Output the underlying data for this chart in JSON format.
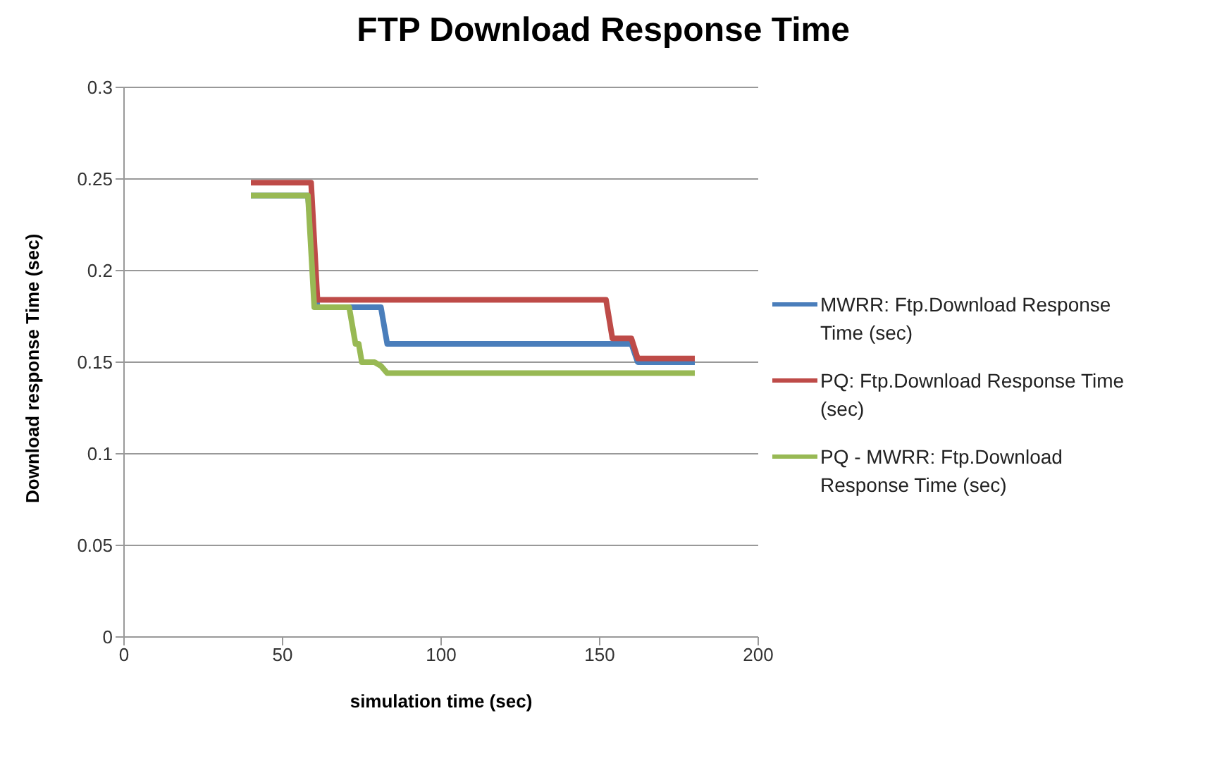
{
  "chart_data": {
    "type": "line",
    "title": "FTP Download Response Time",
    "xlabel": "simulation time (sec)",
    "ylabel": "Download response Time (sec)",
    "xlim": [
      0,
      200
    ],
    "xticks": [
      0,
      50,
      100,
      150,
      200
    ],
    "ylim": [
      0,
      0.3
    ],
    "yticks": [
      0,
      0.05,
      0.1,
      0.15,
      0.2,
      0.25,
      0.3
    ],
    "grid": "y",
    "legend": "right",
    "marker": "none",
    "line_style": "solid",
    "series": [
      {
        "name": "MWRR: Ftp.Download  Response Time (sec)",
        "color": "#4a7ebb",
        "x": [
          40,
          58,
          61,
          81,
          83,
          160,
          162,
          180
        ],
        "values": [
          0.241,
          0.241,
          0.18,
          0.18,
          0.16,
          0.16,
          0.15,
          0.15
        ]
      },
      {
        "name": "PQ: Ftp.Download  Response Time (sec)",
        "color": "#be4b48",
        "x": [
          40,
          59,
          61,
          152,
          154,
          160,
          162,
          180
        ],
        "values": [
          0.248,
          0.248,
          0.184,
          0.184,
          0.163,
          0.163,
          0.152,
          0.152
        ]
      },
      {
        "name": "PQ - MWRR: Ftp.Download Response Time (sec)",
        "color": "#98b954",
        "x": [
          40,
          58,
          60,
          71,
          73,
          74,
          75,
          79,
          81,
          83,
          180
        ],
        "values": [
          0.241,
          0.241,
          0.18,
          0.18,
          0.16,
          0.16,
          0.15,
          0.15,
          0.148,
          0.144,
          0.144
        ]
      }
    ]
  }
}
